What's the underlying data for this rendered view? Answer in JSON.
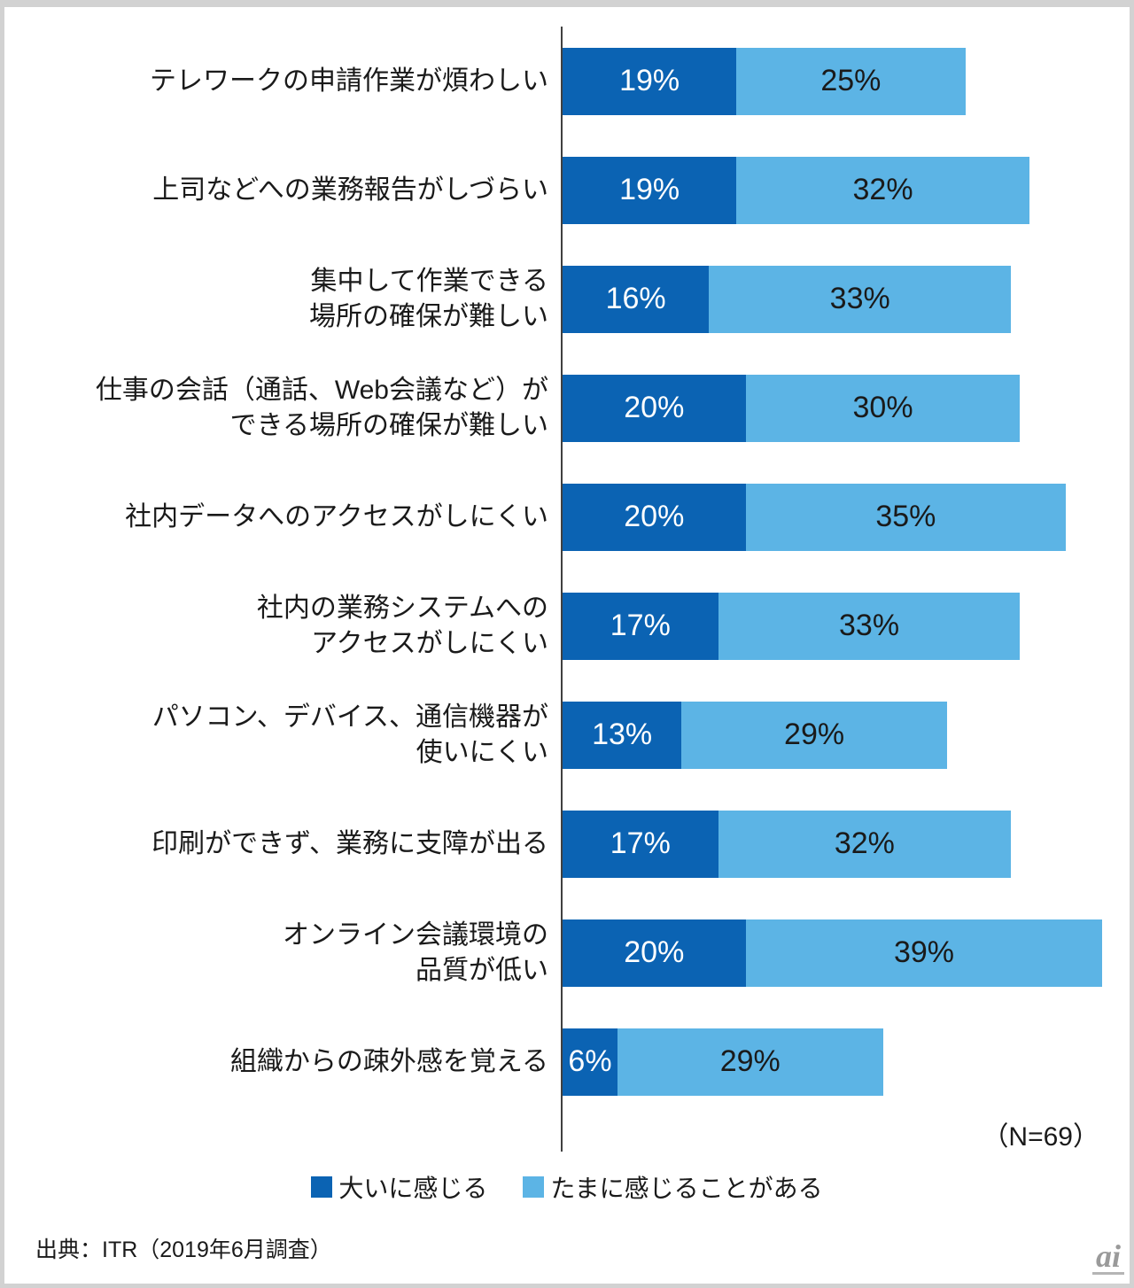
{
  "chart_data": {
    "type": "bar",
    "orientation": "horizontal",
    "stacked": true,
    "grid": false,
    "legend_position": "bottom",
    "xlim": [
      0,
      60
    ],
    "value_suffix": "%",
    "categories": [
      [
        "テレワークの申請作業が煩わしい"
      ],
      [
        "上司などへの業務報告がしづらい"
      ],
      [
        "集中して作業できる",
        "場所の確保が難しい"
      ],
      [
        "仕事の会話（通話、Web会議など）が",
        "できる場所の確保が難しい"
      ],
      [
        "社内データへのアクセスがしにくい"
      ],
      [
        "社内の業務システムへの",
        "アクセスがしにくい"
      ],
      [
        "パソコン、デバイス、通信機器が",
        "使いにくい"
      ],
      [
        "印刷ができず、業務に支障が出る"
      ],
      [
        "オンライン会議環境の",
        "品質が低い"
      ],
      [
        "組織からの疎外感を覚える"
      ]
    ],
    "series": [
      {
        "name": "大いに感じる",
        "color": "#0B63B3",
        "label_color": "#ffffff",
        "values": [
          19,
          19,
          16,
          20,
          20,
          17,
          13,
          17,
          20,
          6
        ]
      },
      {
        "name": "たまに感じることがある",
        "color": "#5CB4E5",
        "label_color": "#1a1a1a",
        "values": [
          25,
          32,
          33,
          30,
          35,
          33,
          29,
          32,
          39,
          29
        ]
      }
    ],
    "n_label": "（N=69）"
  },
  "source": "出典：ITR（2019年6月調査）",
  "watermark": "ai"
}
